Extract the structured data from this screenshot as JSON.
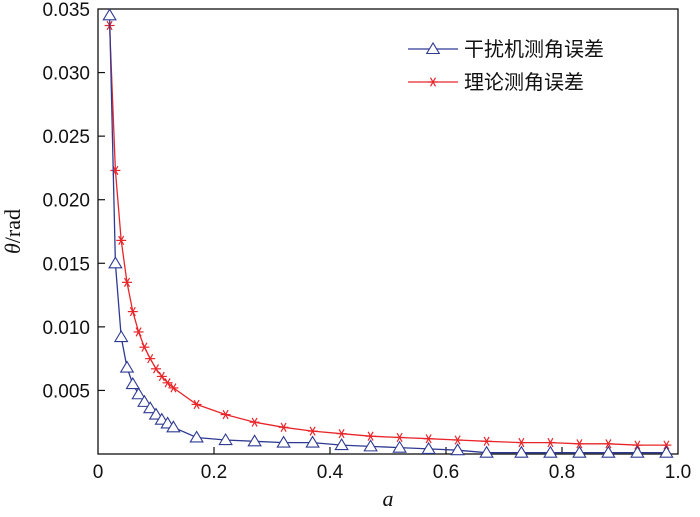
{
  "chart_data": {
    "type": "line",
    "xlabel": "a",
    "ylabel_symbol": "θ",
    "ylabel_unit": "/rad",
    "xlim": [
      0,
      1.0
    ],
    "ylim": [
      0,
      0.035
    ],
    "xticks": [
      "0",
      "0.2",
      "0.4",
      "0.6",
      "0.8",
      "1.0"
    ],
    "yticks": [
      "0.005",
      "0.010",
      "0.015",
      "0.020",
      "0.025",
      "0.030",
      "0.035"
    ],
    "grid": false,
    "legend_position": "top-right",
    "series": [
      {
        "name": "干扰机测角误差",
        "color": "#2e3a92",
        "marker": "triangle-open",
        "x": [
          0.02,
          0.03,
          0.04,
          0.05,
          0.06,
          0.07,
          0.08,
          0.09,
          0.1,
          0.11,
          0.12,
          0.13,
          0.17,
          0.22,
          0.27,
          0.32,
          0.37,
          0.42,
          0.47,
          0.52,
          0.57,
          0.62,
          0.67,
          0.73,
          0.78,
          0.83,
          0.88,
          0.93,
          0.98
        ],
        "y": [
          0.0345,
          0.015,
          0.0092,
          0.0068,
          0.0055,
          0.0047,
          0.0041,
          0.0036,
          0.0031,
          0.0027,
          0.0024,
          0.0021,
          0.0013,
          0.0011,
          0.001,
          0.0009,
          0.0009,
          0.0007,
          0.0006,
          0.0005,
          0.0004,
          0.0003,
          0.0001,
          0.0001,
          0.0001,
          0.0001,
          0.0001,
          0.0001,
          0.0001
        ]
      },
      {
        "name": "理论测角误差",
        "color": "#e8262a",
        "marker": "asterisk",
        "x": [
          0.02,
          0.03,
          0.04,
          0.05,
          0.06,
          0.07,
          0.08,
          0.09,
          0.1,
          0.11,
          0.12,
          0.13,
          0.17,
          0.22,
          0.27,
          0.32,
          0.37,
          0.42,
          0.47,
          0.52,
          0.57,
          0.62,
          0.67,
          0.73,
          0.78,
          0.83,
          0.88,
          0.93,
          0.98
        ],
        "y": [
          0.0337,
          0.0223,
          0.0168,
          0.0135,
          0.0112,
          0.0096,
          0.0084,
          0.0075,
          0.0067,
          0.0061,
          0.0056,
          0.0052,
          0.0039,
          0.0031,
          0.0025,
          0.0021,
          0.0018,
          0.0016,
          0.0014,
          0.0013,
          0.0012,
          0.0011,
          0.001,
          0.0009,
          0.0009,
          0.0008,
          0.0008,
          0.0007,
          0.0007
        ]
      }
    ]
  }
}
